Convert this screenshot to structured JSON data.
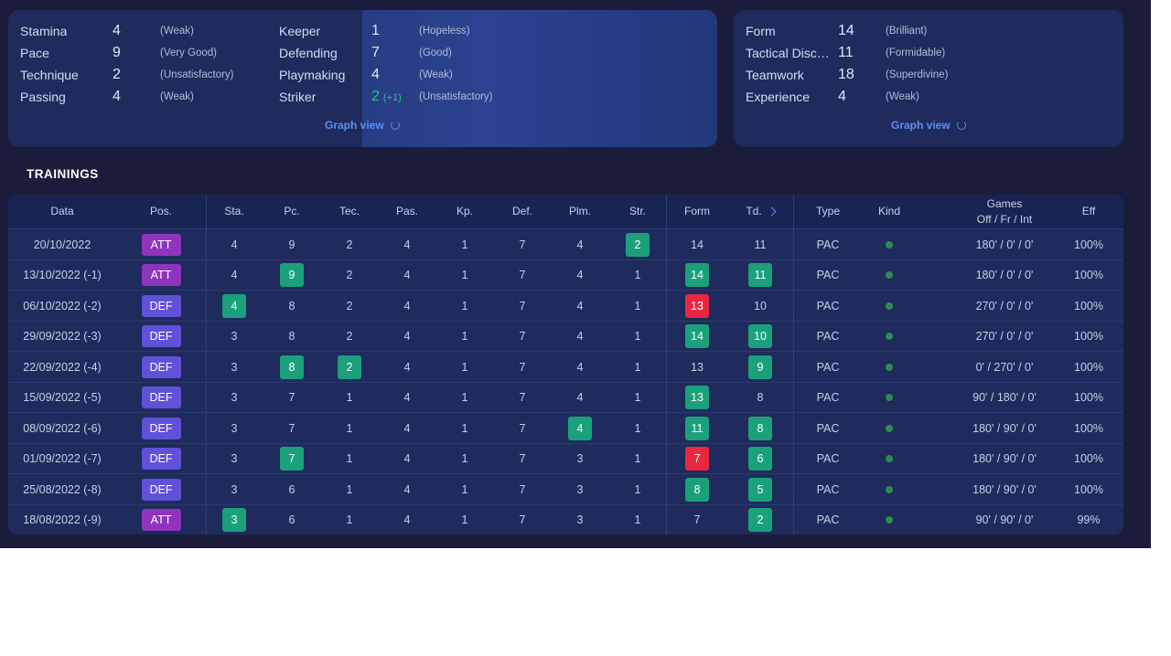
{
  "skills_panel": {
    "rows": [
      {
        "name": "Stamina",
        "value": "4",
        "desc": "(Weak)",
        "bonus": ""
      },
      {
        "name": "Pace",
        "value": "9",
        "desc": "(Very Good)",
        "bonus": ""
      },
      {
        "name": "Technique",
        "value": "2",
        "desc": "(Unsatisfactory)",
        "bonus": ""
      },
      {
        "name": "Passing",
        "value": "4",
        "desc": "(Weak)",
        "bonus": ""
      },
      {
        "name": "Keeper",
        "value": "1",
        "desc": "(Hopeless)",
        "bonus": ""
      },
      {
        "name": "Defending",
        "value": "7",
        "desc": "(Good)",
        "bonus": ""
      },
      {
        "name": "Playmaking",
        "value": "4",
        "desc": "(Weak)",
        "bonus": ""
      },
      {
        "name": "Striker",
        "value": "2",
        "desc": "(Unsatisfactory)",
        "bonus": "(+1)"
      }
    ],
    "graph_link": "Graph view"
  },
  "form_panel": {
    "rows": [
      {
        "name": "Form",
        "value": "14",
        "desc": "(Brilliant)"
      },
      {
        "name": "Tactical Discipline",
        "value": "11",
        "desc": "(Formidable)"
      },
      {
        "name": "Teamwork",
        "value": "18",
        "desc": "(Superdivine)"
      },
      {
        "name": "Experience",
        "value": "4",
        "desc": "(Weak)"
      }
    ],
    "graph_link": "Graph view"
  },
  "trainings": {
    "title": "TRAININGS",
    "headers": {
      "date": "Data",
      "pos": "Pos.",
      "sta": "Sta.",
      "pc": "Pc.",
      "tec": "Tec.",
      "pas": "Pas.",
      "kp": "Kp.",
      "def": "Def.",
      "plm": "Plm.",
      "str": "Str.",
      "form": "Form",
      "td": "Td.",
      "type": "Type",
      "kind": "Kind",
      "games_1": "Games",
      "games_2": "Off / Fr / Int",
      "eff": "Eff"
    },
    "rows": [
      {
        "date": "20/10/2022",
        "pos": "ATT",
        "sta": "4",
        "pc": "9",
        "tec": "2",
        "pas": "4",
        "kp": "1",
        "def": "7",
        "plm": "4",
        "str": "2",
        "form": "14",
        "td": "11",
        "type": "PAC",
        "games": "180' / 0' / 0'",
        "eff": "100%",
        "hl": {
          "str": "up"
        }
      },
      {
        "date": "13/10/2022 (-1)",
        "pos": "ATT",
        "sta": "4",
        "pc": "9",
        "tec": "2",
        "pas": "4",
        "kp": "1",
        "def": "7",
        "plm": "4",
        "str": "1",
        "form": "14",
        "td": "11",
        "type": "PAC",
        "games": "180' / 0' / 0'",
        "eff": "100%",
        "hl": {
          "pc": "up",
          "form": "up",
          "td": "up"
        }
      },
      {
        "date": "06/10/2022 (-2)",
        "pos": "DEF",
        "sta": "4",
        "pc": "8",
        "tec": "2",
        "pas": "4",
        "kp": "1",
        "def": "7",
        "plm": "4",
        "str": "1",
        "form": "13",
        "td": "10",
        "type": "PAC",
        "games": "270' / 0' / 0'",
        "eff": "100%",
        "hl": {
          "sta": "up",
          "form": "down"
        }
      },
      {
        "date": "29/09/2022 (-3)",
        "pos": "DEF",
        "sta": "3",
        "pc": "8",
        "tec": "2",
        "pas": "4",
        "kp": "1",
        "def": "7",
        "plm": "4",
        "str": "1",
        "form": "14",
        "td": "10",
        "type": "PAC",
        "games": "270' / 0' / 0'",
        "eff": "100%",
        "hl": {
          "form": "up",
          "td": "up"
        }
      },
      {
        "date": "22/09/2022 (-4)",
        "pos": "DEF",
        "sta": "3",
        "pc": "8",
        "tec": "2",
        "pas": "4",
        "kp": "1",
        "def": "7",
        "plm": "4",
        "str": "1",
        "form": "13",
        "td": "9",
        "type": "PAC",
        "games": "0' / 270' / 0'",
        "eff": "100%",
        "hl": {
          "pc": "up",
          "tec": "up",
          "td": "up"
        }
      },
      {
        "date": "15/09/2022 (-5)",
        "pos": "DEF",
        "sta": "3",
        "pc": "7",
        "tec": "1",
        "pas": "4",
        "kp": "1",
        "def": "7",
        "plm": "4",
        "str": "1",
        "form": "13",
        "td": "8",
        "type": "PAC",
        "games": "90' / 180' / 0'",
        "eff": "100%",
        "hl": {
          "form": "up"
        }
      },
      {
        "date": "08/09/2022 (-6)",
        "pos": "DEF",
        "sta": "3",
        "pc": "7",
        "tec": "1",
        "pas": "4",
        "kp": "1",
        "def": "7",
        "plm": "4",
        "str": "1",
        "form": "11",
        "td": "8",
        "type": "PAC",
        "games": "180' / 90' / 0'",
        "eff": "100%",
        "hl": {
          "plm": "up",
          "form": "up",
          "td": "up"
        }
      },
      {
        "date": "01/09/2022 (-7)",
        "pos": "DEF",
        "sta": "3",
        "pc": "7",
        "tec": "1",
        "pas": "4",
        "kp": "1",
        "def": "7",
        "plm": "3",
        "str": "1",
        "form": "7",
        "td": "6",
        "type": "PAC",
        "games": "180' / 90' / 0'",
        "eff": "100%",
        "hl": {
          "pc": "up",
          "form": "down",
          "td": "up"
        }
      },
      {
        "date": "25/08/2022 (-8)",
        "pos": "DEF",
        "sta": "3",
        "pc": "6",
        "tec": "1",
        "pas": "4",
        "kp": "1",
        "def": "7",
        "plm": "3",
        "str": "1",
        "form": "8",
        "td": "5",
        "type": "PAC",
        "games": "180' / 90' / 0'",
        "eff": "100%",
        "hl": {
          "form": "up",
          "td": "up"
        }
      },
      {
        "date": "18/08/2022 (-9)",
        "pos": "ATT",
        "sta": "3",
        "pc": "6",
        "tec": "1",
        "pas": "4",
        "kp": "1",
        "def": "7",
        "plm": "3",
        "str": "1",
        "form": "7",
        "td": "2",
        "type": "PAC",
        "games": "90' / 90' / 0'",
        "eff": "99%",
        "hl": {
          "sta": "up",
          "td": "up"
        }
      }
    ]
  },
  "colors": {
    "background": "#1b1c3b",
    "panel": "#1e2b5c",
    "link": "#5c8ef2",
    "increase": "#1aa07a",
    "decrease": "#e8283f",
    "att": "#8f34bd",
    "def": "#6150d8",
    "kind_dot": "#2f8b53"
  }
}
